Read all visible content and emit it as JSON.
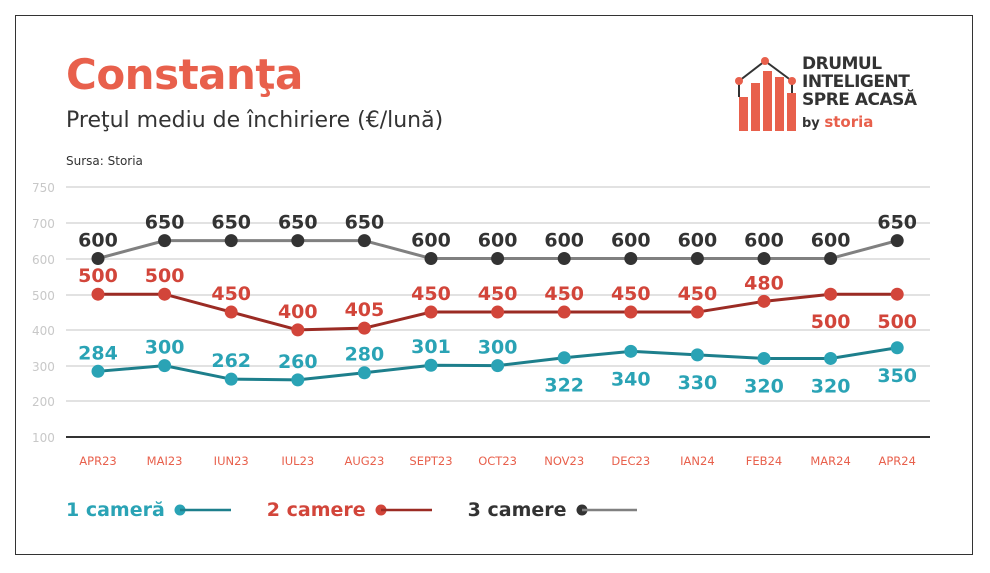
{
  "header": {
    "title": "Constanţa",
    "subtitle": "Preţul mediu de închiriere (€/lună)",
    "source": "Sursa: Storia"
  },
  "logo": {
    "line1": "DRUMUL",
    "line2": "INTELIGENT",
    "line3": "SPRE ACASĂ",
    "by": "by",
    "brand": "storia"
  },
  "colors": {
    "one": "#2aa3b5",
    "one_line": "#1d7f8c",
    "two": "#d2453a",
    "two_line": "#9b2b24",
    "three": "#333333",
    "three_line": "#808080",
    "axis_label": "#e8604c",
    "grid": "#d9d9d9"
  },
  "chart_data": {
    "type": "line",
    "title": "Preţul mediu de închiriere (€/lună)",
    "categories": [
      "APR23",
      "MAI23",
      "IUN23",
      "IUL23",
      "AUG23",
      "SEPT23",
      "OCT23",
      "NOV23",
      "DEC23",
      "IAN24",
      "FEB24",
      "MAR24",
      "APR24"
    ],
    "y_ticks": [
      "750",
      "700",
      "600",
      "500",
      "400",
      "300",
      "200",
      "100"
    ],
    "ylim": [
      100,
      750
    ],
    "grid": true,
    "legend_position": "bottom-left",
    "series": [
      {
        "name": "1 cameră",
        "values": [
          284,
          300,
          262,
          260,
          280,
          301,
          300,
          322,
          340,
          330,
          320,
          320,
          350
        ]
      },
      {
        "name": "2 camere",
        "values": [
          500,
          500,
          450,
          400,
          405,
          450,
          450,
          450,
          450,
          450,
          480,
          500,
          500
        ]
      },
      {
        "name": "3 camere",
        "values": [
          600,
          650,
          650,
          650,
          650,
          600,
          600,
          600,
          600,
          600,
          600,
          600,
          650
        ]
      }
    ]
  }
}
